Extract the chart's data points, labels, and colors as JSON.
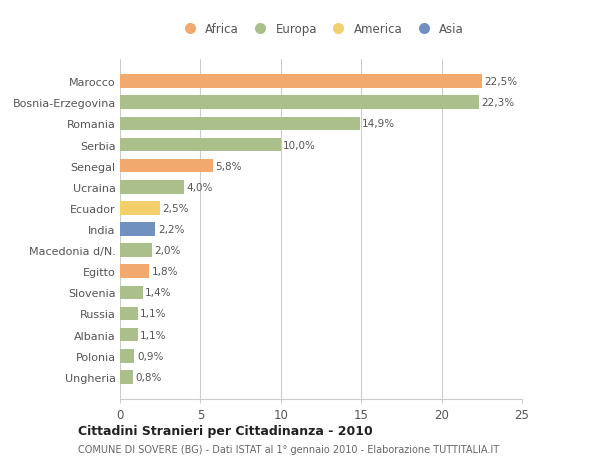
{
  "countries": [
    "Ungheria",
    "Polonia",
    "Albania",
    "Russia",
    "Slovenia",
    "Egitto",
    "Macedonia d/N.",
    "India",
    "Ecuador",
    "Ucraina",
    "Senegal",
    "Serbia",
    "Romania",
    "Bosnia-Erzegovina",
    "Marocco"
  ],
  "values": [
    0.8,
    0.9,
    1.1,
    1.1,
    1.4,
    1.8,
    2.0,
    2.2,
    2.5,
    4.0,
    5.8,
    10.0,
    14.9,
    22.3,
    22.5
  ],
  "labels": [
    "0,8%",
    "0,9%",
    "1,1%",
    "1,1%",
    "1,4%",
    "1,8%",
    "2,0%",
    "2,2%",
    "2,5%",
    "4,0%",
    "5,8%",
    "10,0%",
    "14,9%",
    "22,3%",
    "22,5%"
  ],
  "continents": [
    "Europa",
    "Europa",
    "Europa",
    "Europa",
    "Europa",
    "Africa",
    "Europa",
    "Asia",
    "America",
    "Europa",
    "Africa",
    "Europa",
    "Europa",
    "Europa",
    "Africa"
  ],
  "colors": {
    "Africa": "#F2A96E",
    "Europa": "#AABF8A",
    "America": "#F2D06B",
    "Asia": "#7090C0"
  },
  "legend_order": [
    "Africa",
    "Europa",
    "America",
    "Asia"
  ],
  "title": "Cittadini Stranieri per Cittadinanza - 2010",
  "subtitle": "COMUNE DI SOVERE (BG) - Dati ISTAT al 1° gennaio 2010 - Elaborazione TUTTITALIA.IT",
  "xlim": [
    0,
    25
  ],
  "xticks": [
    0,
    5,
    10,
    15,
    20,
    25
  ],
  "background_color": "#ffffff",
  "grid_color": "#cccccc",
  "bar_height": 0.65
}
